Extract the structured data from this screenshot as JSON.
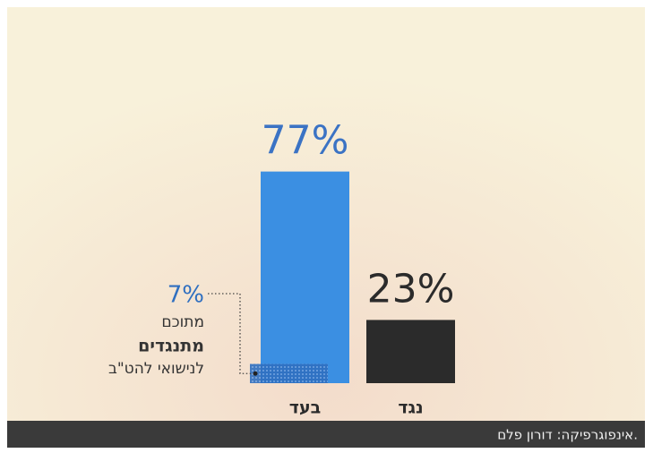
{
  "chart_data": {
    "type": "bar",
    "categories": [
      "בעד",
      "נגד"
    ],
    "values": [
      77,
      23
    ],
    "value_labels": [
      "77%",
      "23%"
    ],
    "colors": [
      "#3b8fe2",
      "#2b2b2b"
    ],
    "annotation": {
      "value": 7,
      "label": "7%",
      "color": "#2f6fc0",
      "lines": [
        "מתוכם",
        "מתנגדים",
        "לנישואי להט\"ב"
      ]
    },
    "credit": "אינפוגרפיקה: דורון פלם."
  }
}
